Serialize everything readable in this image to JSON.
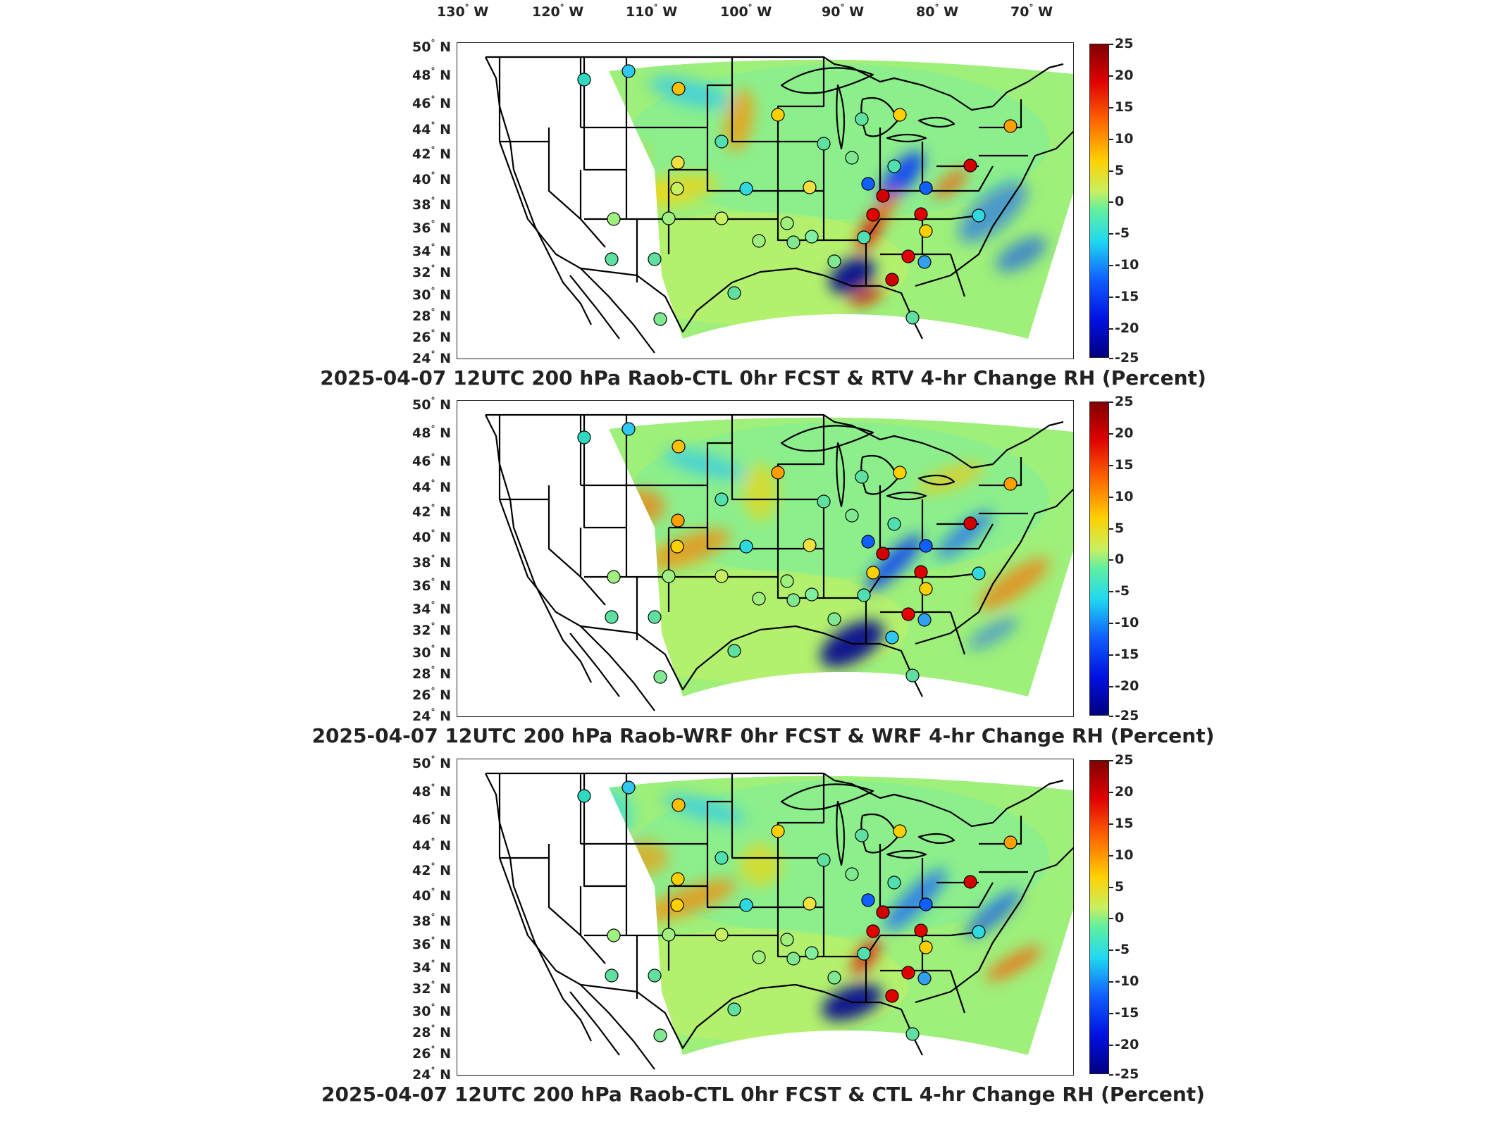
{
  "longitude_labels": [
    "130",
    "120",
    "110",
    "100",
    "90",
    "80",
    "70"
  ],
  "lon_suffix": "W",
  "latitude_labels": [
    "50",
    "48",
    "46",
    "44",
    "42",
    "40",
    "38",
    "36",
    "34",
    "32",
    "30",
    "28",
    "26",
    "24"
  ],
  "lat_suffix": "N",
  "degree_mark": "°",
  "colorbar": {
    "ticks": [
      "25",
      "20",
      "15",
      "10",
      "5",
      "0",
      "-5",
      "-10",
      "-15",
      "-20",
      "-25"
    ],
    "range": [
      -25,
      25
    ],
    "colors": [
      "#800000",
      "#e00000",
      "#ff6a00",
      "#ffd000",
      "#c8f060",
      "#60f0a0",
      "#20d8f0",
      "#1060ff",
      "#0010e0",
      "#000080"
    ]
  },
  "panels": [
    {
      "title": "2025-04-07 12UTC 200 hPa Raob-CTL 0hr FCST & RTV 4-hr Change RH (Percent)"
    },
    {
      "title": "2025-04-07 12UTC 200 hPa Raob-WRF 0hr FCST & WRF 4-hr Change RH (Percent)"
    },
    {
      "title": "2025-04-07 12UTC 200 hPa Raob-CTL 0hr FCST & CTL 4-hr Change RH (Percent)"
    }
  ]
}
